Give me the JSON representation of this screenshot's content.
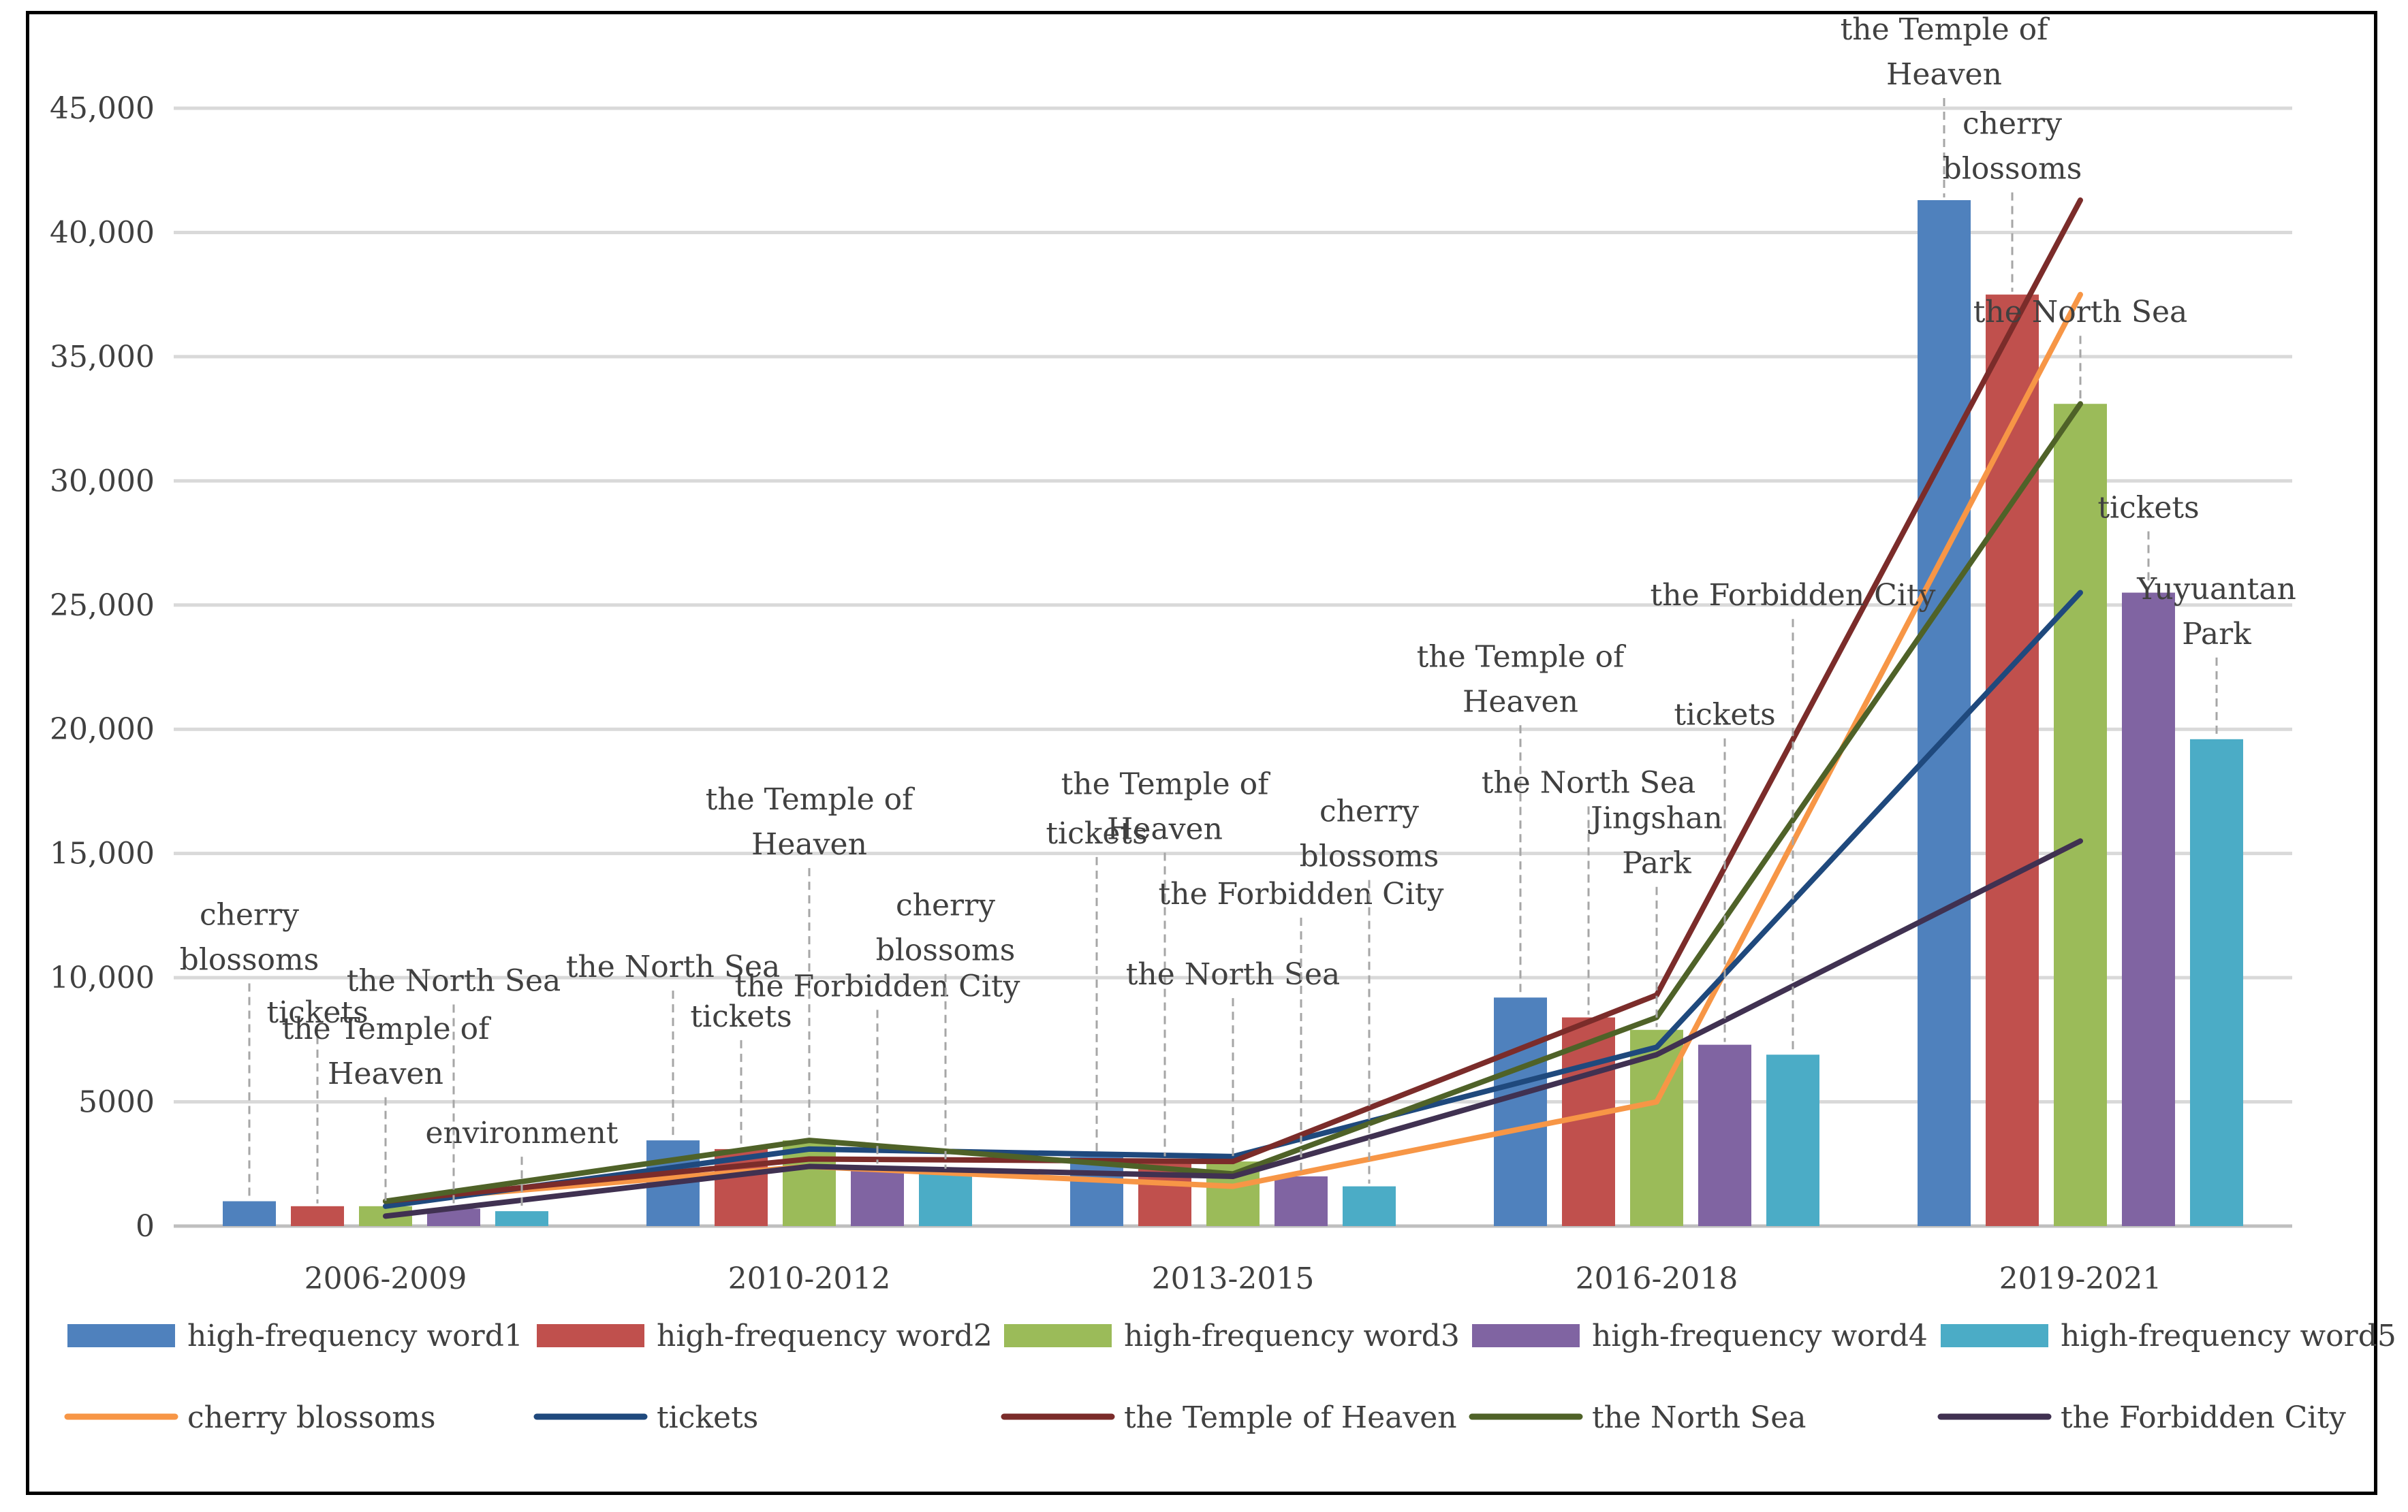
{
  "chart_data": {
    "type": "bar+line",
    "title": "",
    "xlabel": "",
    "ylabel": "",
    "ylim": [
      0,
      45000
    ],
    "yticks": [
      0,
      5000,
      10000,
      15000,
      20000,
      25000,
      30000,
      35000,
      40000,
      45000
    ],
    "ytick_labels": [
      "0",
      "5000",
      "10,000",
      "15,000",
      "20,000",
      "25,000",
      "30,000",
      "35,000",
      "40,000",
      "45,000"
    ],
    "categories": [
      "2006-2009",
      "2010-2012",
      "2013-2015",
      "2016-2018",
      "2019-2021"
    ],
    "bar_series": [
      {
        "name": "high-frequency word1",
        "color": "#4f81bd",
        "values": [
          1000,
          3450,
          2800,
          9200,
          41300
        ]
      },
      {
        "name": "high-frequency word2",
        "color": "#c0504d",
        "values": [
          800,
          3100,
          2700,
          8400,
          37500
        ]
      },
      {
        "name": "high-frequency word3",
        "color": "#9bbb59",
        "values": [
          800,
          3450,
          2600,
          7900,
          33100
        ]
      },
      {
        "name": "high-frequency word4",
        "color": "#8064a2",
        "values": [
          700,
          2400,
          2000,
          7300,
          25500
        ]
      },
      {
        "name": "high-frequency word5",
        "color": "#4bacc6",
        "values": [
          600,
          2200,
          1600,
          6900,
          19600
        ]
      }
    ],
    "line_series": [
      {
        "name": "cherry blossoms",
        "color": "#f79646",
        "values": [
          1000,
          2400,
          1600,
          5000,
          37500
        ]
      },
      {
        "name": "tickets",
        "color": "#1f497d",
        "values": [
          800,
          3100,
          2800,
          7200,
          25500
        ]
      },
      {
        "name": "the Temple of Heaven",
        "color": "#7b2c2a",
        "values": [
          1000,
          2700,
          2600,
          9300,
          41300
        ]
      },
      {
        "name": "the North Sea",
        "color": "#4f6228",
        "values": [
          1000,
          3450,
          2100,
          8400,
          33100
        ]
      },
      {
        "name": "the Forbidden City",
        "color": "#403151",
        "values": [
          400,
          2400,
          2000,
          6900,
          15500
        ]
      }
    ],
    "annotations": [
      {
        "cat": 0,
        "bar": 0,
        "lines": [
          "cherry",
          "blossoms"
        ]
      },
      {
        "cat": 0,
        "bar": 1,
        "lines": [
          "tickets"
        ]
      },
      {
        "cat": 0,
        "bar": 2,
        "lines": [
          "the Temple of",
          "Heaven"
        ]
      },
      {
        "cat": 0,
        "bar": 3,
        "lines": [
          "the North Sea"
        ]
      },
      {
        "cat": 0,
        "bar": 4,
        "lines": [
          "environment"
        ]
      },
      {
        "cat": 1,
        "bar": 0,
        "lines": [
          "the North Sea"
        ]
      },
      {
        "cat": 1,
        "bar": 1,
        "lines": [
          "tickets"
        ]
      },
      {
        "cat": 1,
        "bar": 2,
        "lines": [
          "the Temple of",
          "Heaven"
        ]
      },
      {
        "cat": 1,
        "bar": 3,
        "lines": [
          "the Forbidden City"
        ]
      },
      {
        "cat": 1,
        "bar": 4,
        "lines": [
          "cherry",
          "blossoms"
        ]
      },
      {
        "cat": 2,
        "bar": 0,
        "lines": [
          "tickets"
        ]
      },
      {
        "cat": 2,
        "bar": 1,
        "lines": [
          "the Temple of",
          "Heaven"
        ]
      },
      {
        "cat": 2,
        "bar": 2,
        "lines": [
          "the North Sea"
        ]
      },
      {
        "cat": 2,
        "bar": 3,
        "lines": [
          "the Forbidden City"
        ]
      },
      {
        "cat": 2,
        "bar": 4,
        "lines": [
          "cherry",
          "blossoms"
        ]
      },
      {
        "cat": 3,
        "bar": 0,
        "lines": [
          "the Temple of",
          "Heaven"
        ]
      },
      {
        "cat": 3,
        "bar": 1,
        "lines": [
          "the North Sea"
        ]
      },
      {
        "cat": 3,
        "bar": 2,
        "lines": [
          "Jingshan",
          "Park"
        ]
      },
      {
        "cat": 3,
        "bar": 3,
        "lines": [
          "tickets"
        ]
      },
      {
        "cat": 3,
        "bar": 4,
        "lines": [
          "the Forbidden City"
        ]
      },
      {
        "cat": 4,
        "bar": 0,
        "lines": [
          "the Temple of",
          "Heaven"
        ]
      },
      {
        "cat": 4,
        "bar": 1,
        "lines": [
          "cherry",
          "blossoms"
        ]
      },
      {
        "cat": 4,
        "bar": 2,
        "lines": [
          "the North Sea"
        ]
      },
      {
        "cat": 4,
        "bar": 3,
        "lines": [
          "tickets"
        ]
      },
      {
        "cat": 4,
        "bar": 4,
        "lines": [
          "Yuyuantan",
          "Park"
        ]
      }
    ],
    "legend_position": "bottom",
    "grid": true
  }
}
